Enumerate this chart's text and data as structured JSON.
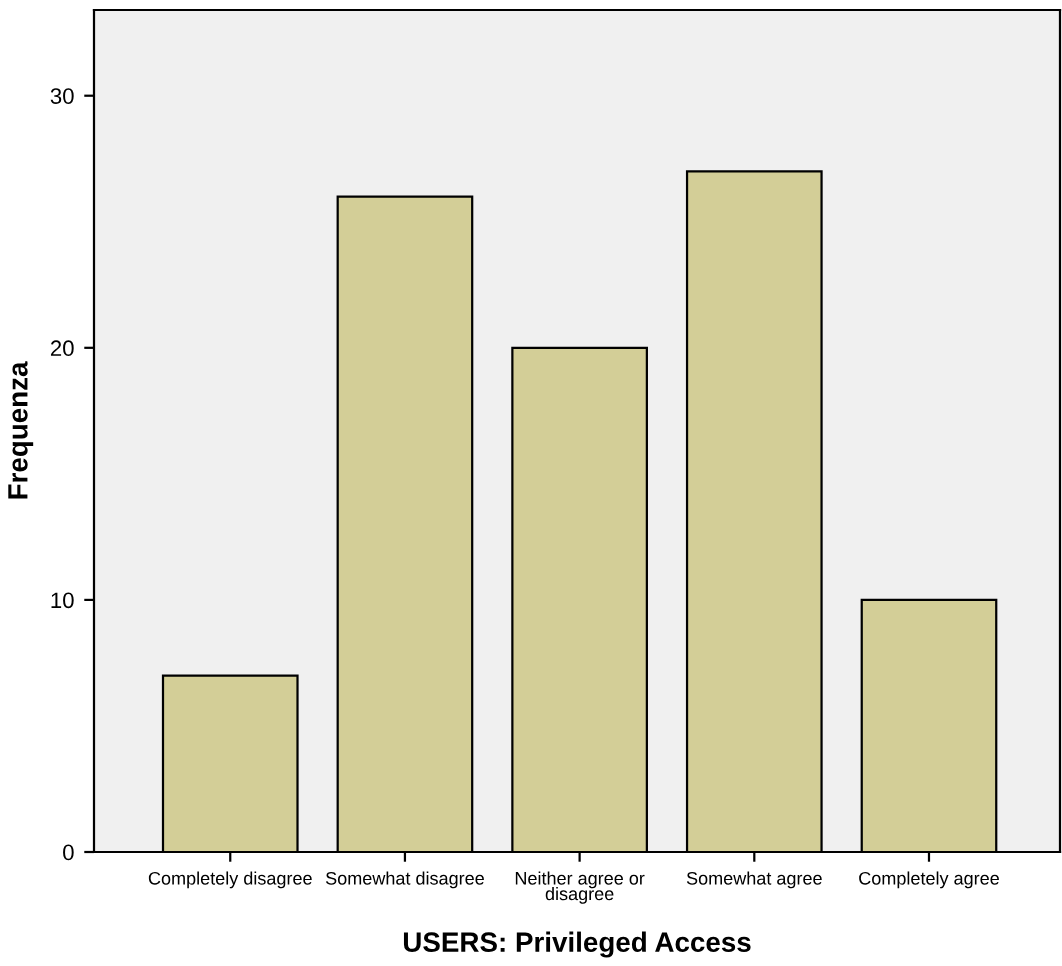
{
  "chart_data": {
    "type": "bar",
    "xlabel": "USERS: Privileged Access",
    "ylabel": "Frequenza",
    "categories": [
      "Completely disagree",
      "Somewhat disagree",
      "Neither agree or\ndisagree",
      "Somewhat agree",
      "Completely agree"
    ],
    "values": [
      7,
      26,
      20,
      27,
      10
    ],
    "color": "#d3ce97",
    "ylim": [
      0,
      33.4
    ],
    "yticks": [
      0,
      10,
      20,
      30
    ],
    "grid": false
  }
}
